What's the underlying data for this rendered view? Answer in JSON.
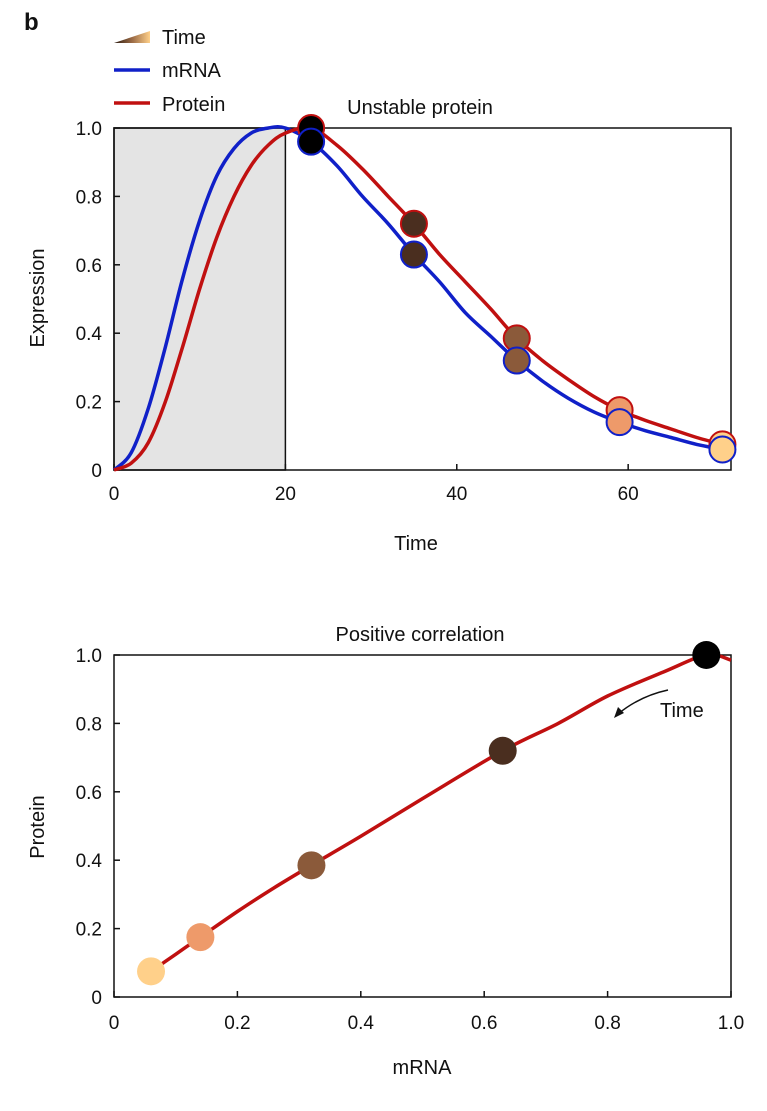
{
  "panel_letter": "b",
  "legend": {
    "time": "Time",
    "mrna": "mRNA",
    "protein": "Protein"
  },
  "colors": {
    "mrna": "#1020c8",
    "protein": "#c01010",
    "shade": "#e4e4e4"
  },
  "time_colors": [
    "#000000",
    "#4a2e1f",
    "#8b5a3a",
    "#ee9a6a",
    "#ffd08a"
  ],
  "chart_data": [
    {
      "type": "line",
      "title": "Unstable protein",
      "xlabel": "Time",
      "ylabel": "Expression",
      "xlim": [
        0,
        72
      ],
      "ylim": [
        0,
        1.0
      ],
      "xticks": [
        "0",
        "20",
        "40",
        "60"
      ],
      "yticks": [
        "0",
        "0.2",
        "0.4",
        "0.6",
        "0.8",
        "1.0"
      ],
      "shaded_region_x": [
        0,
        20
      ],
      "series": [
        {
          "name": "mRNA",
          "x": [
            0,
            2,
            4,
            6,
            8,
            10,
            12,
            14,
            16,
            18,
            20,
            23,
            26,
            29,
            32,
            35,
            38,
            41,
            44,
            47,
            50,
            53,
            56,
            59,
            62,
            65,
            68,
            71,
            72
          ],
          "y": [
            0,
            0.05,
            0.18,
            0.36,
            0.56,
            0.73,
            0.86,
            0.94,
            0.985,
            1.0,
            1.0,
            0.96,
            0.89,
            0.8,
            0.72,
            0.63,
            0.55,
            0.46,
            0.39,
            0.32,
            0.26,
            0.21,
            0.17,
            0.14,
            0.115,
            0.095,
            0.075,
            0.06,
            0.055
          ]
        },
        {
          "name": "Protein",
          "x": [
            0,
            2,
            4,
            6,
            8,
            10,
            12,
            14,
            16,
            18,
            20,
            23,
            26,
            29,
            32,
            35,
            38,
            41,
            44,
            47,
            50,
            53,
            56,
            59,
            62,
            65,
            68,
            71,
            72
          ],
          "y": [
            0,
            0.02,
            0.08,
            0.2,
            0.36,
            0.53,
            0.68,
            0.8,
            0.89,
            0.95,
            0.985,
            1.0,
            0.95,
            0.88,
            0.8,
            0.72,
            0.63,
            0.55,
            0.47,
            0.385,
            0.32,
            0.265,
            0.215,
            0.175,
            0.145,
            0.12,
            0.095,
            0.075,
            0.07
          ]
        }
      ],
      "markers": {
        "x": [
          23,
          35,
          47,
          59,
          71
        ],
        "mrna": [
          0.96,
          0.63,
          0.32,
          0.14,
          0.06
        ],
        "protein": [
          1.0,
          0.72,
          0.385,
          0.175,
          0.075
        ]
      }
    },
    {
      "type": "line",
      "title": "Positive correlation",
      "xlabel": "mRNA",
      "ylabel": "Protein",
      "xlim": [
        0,
        1.0
      ],
      "ylim": [
        0,
        1.0
      ],
      "xticks": [
        "0",
        "0.2",
        "0.4",
        "0.6",
        "0.8",
        "1.0"
      ],
      "yticks": [
        "0",
        "0.2",
        "0.4",
        "0.6",
        "0.8",
        "1.0"
      ],
      "series": [
        {
          "name": "",
          "x": [
            0.055,
            0.06,
            0.1,
            0.14,
            0.2,
            0.26,
            0.32,
            0.4,
            0.5,
            0.63,
            0.72,
            0.8,
            0.89,
            0.96,
            1.0
          ],
          "y": [
            0.07,
            0.075,
            0.125,
            0.175,
            0.25,
            0.32,
            0.385,
            0.47,
            0.58,
            0.72,
            0.8,
            0.88,
            0.95,
            1.0,
            0.985
          ]
        }
      ],
      "points": {
        "x": [
          0.96,
          0.63,
          0.32,
          0.14,
          0.06
        ],
        "y": [
          1.0,
          0.72,
          0.385,
          0.175,
          0.075
        ]
      },
      "annotation": "Time"
    }
  ]
}
